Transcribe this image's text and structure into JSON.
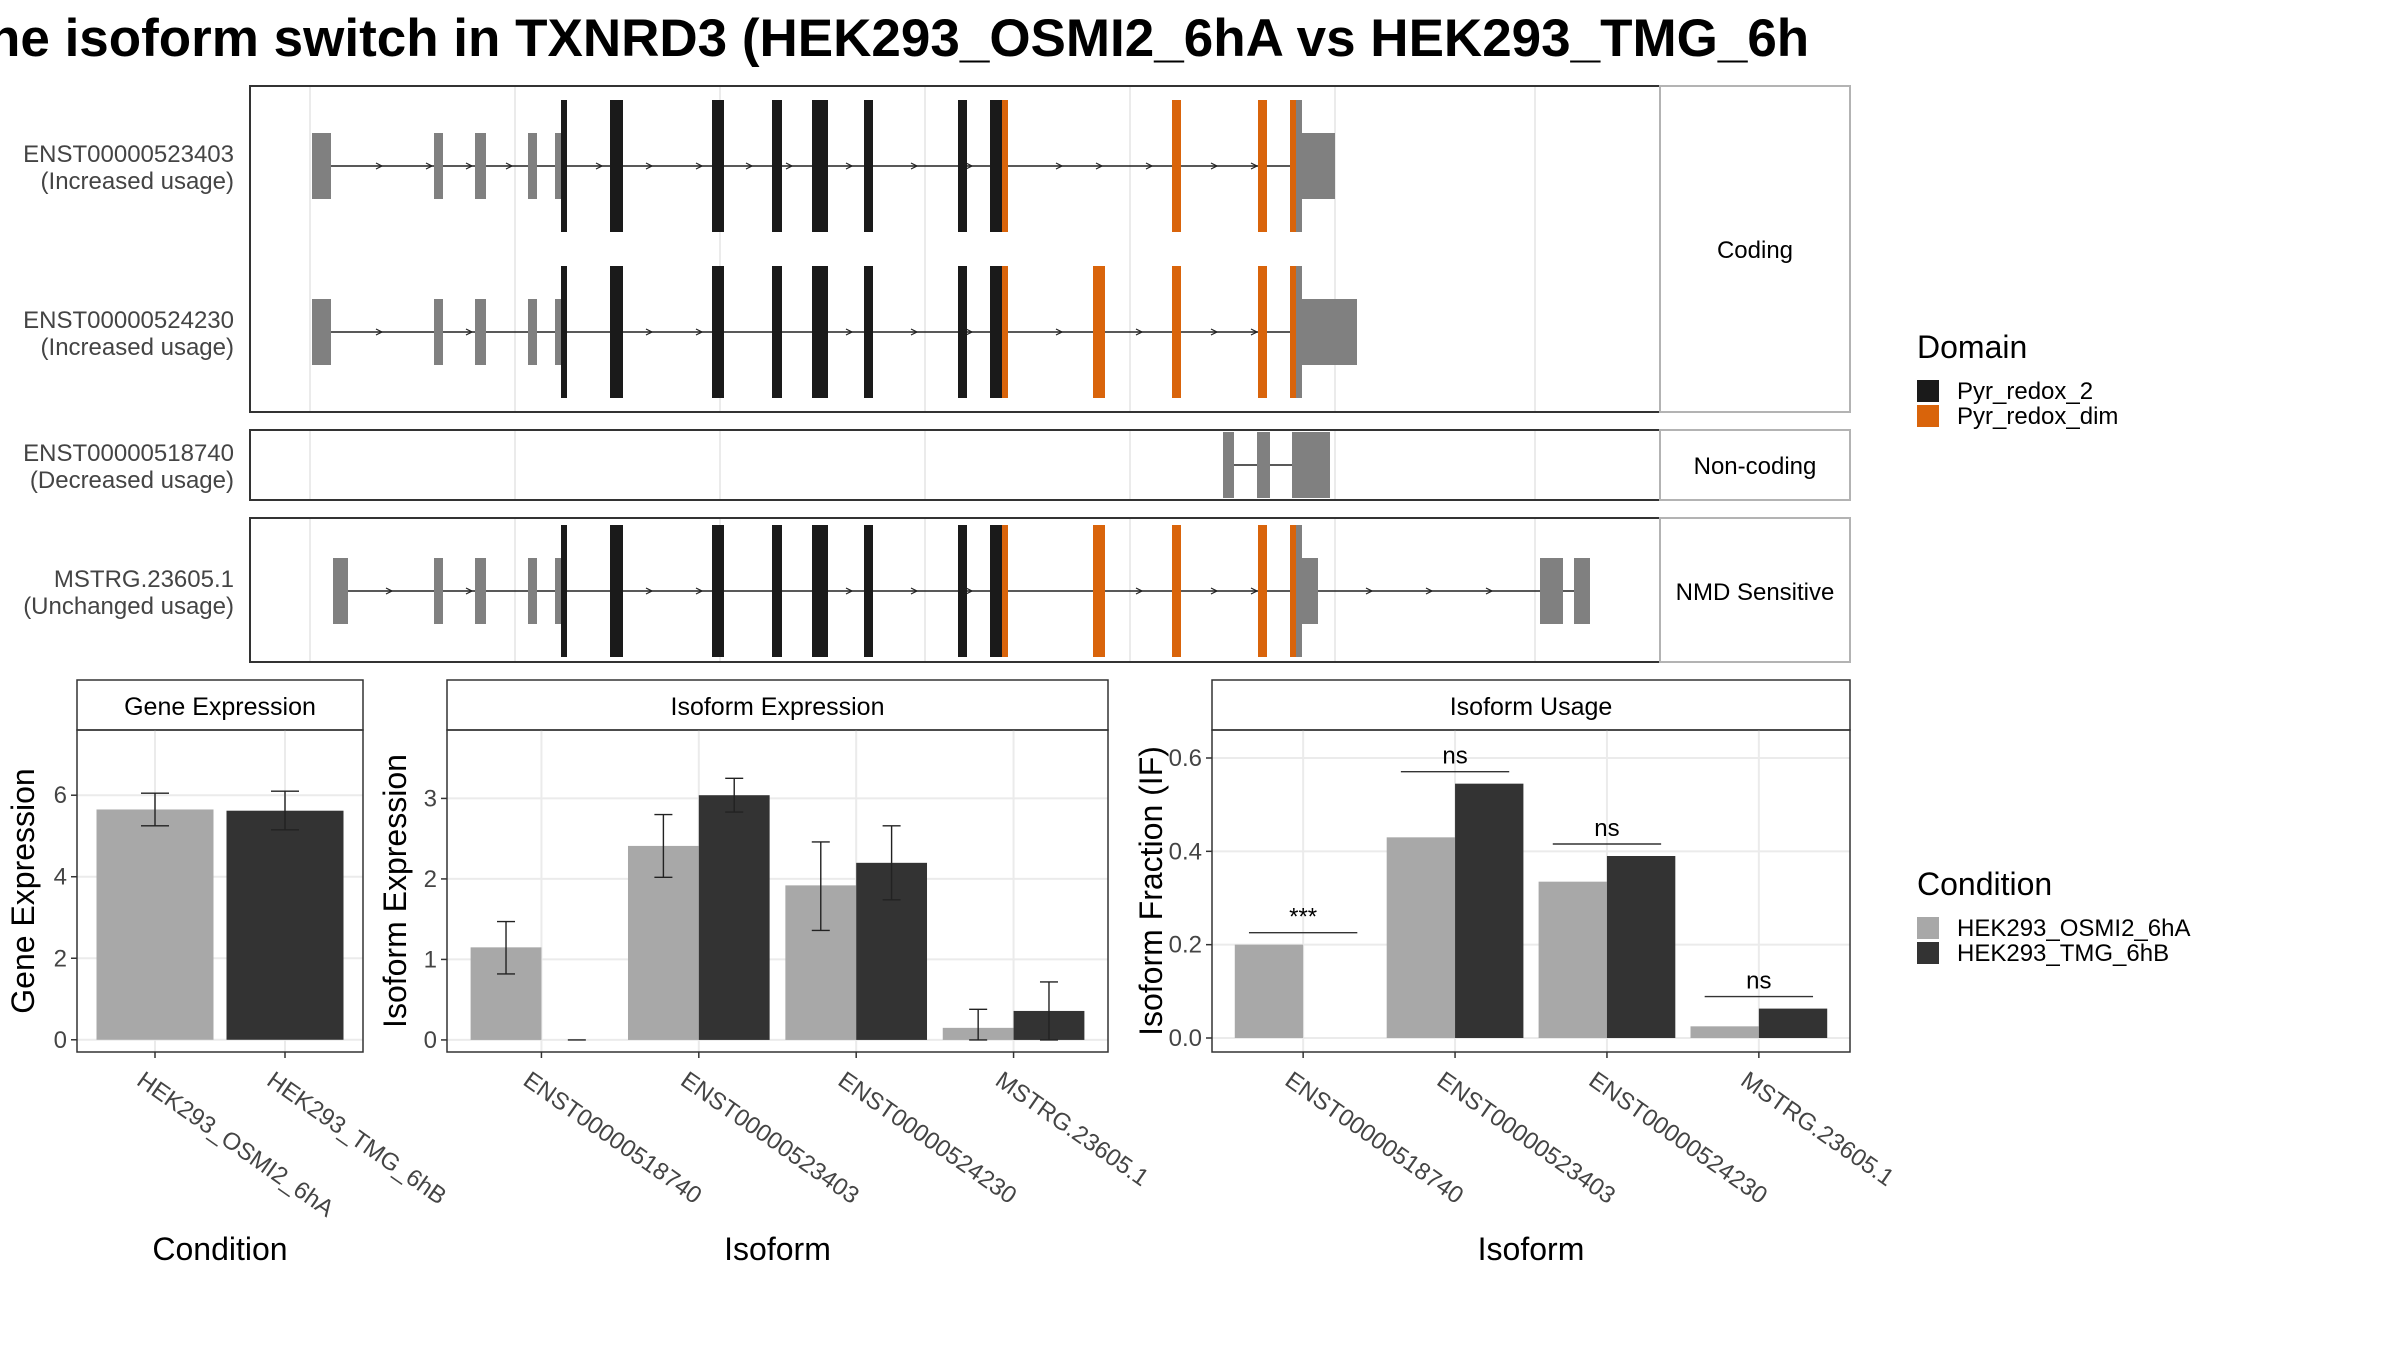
{
  "title": "ne isoform switch in TXNRD3 (HEK293_OSMI2_6hA vs HEK293_TMG_6h",
  "colors": {
    "orange": "#d9640b",
    "black": "#1a1a1a",
    "utr": "#808080",
    "light_bar": "#a8a8a8",
    "dark_bar": "#333333",
    "grid": "#ebebeb",
    "strip_border": "#b3b3b3"
  },
  "structure": {
    "groups": [
      {
        "label": "Coding"
      },
      {
        "label": "Non-coding"
      },
      {
        "label": "NMD Sensitive"
      }
    ],
    "tracks": [
      {
        "id": "ENST00000523403",
        "usage": "(Increased usage)",
        "group": 0
      },
      {
        "id": "ENST00000524230",
        "usage": "(Increased usage)",
        "group": 0
      },
      {
        "id": "ENST00000518740",
        "usage": "(Decreased usage)",
        "group": 1
      },
      {
        "id": "MSTRG.23605.1",
        "usage": "(Unchanged usage)",
        "group": 2
      }
    ]
  },
  "legends": {
    "domain": {
      "title": "Domain",
      "items": [
        {
          "label": "Pyr_redox_2",
          "color": "#1a1a1a"
        },
        {
          "label": "Pyr_redox_dim",
          "color": "#d9640b"
        }
      ]
    },
    "condition": {
      "title": "Condition",
      "items": [
        {
          "label": "HEK293_OSMI2_6hA",
          "color": "#a8a8a8"
        },
        {
          "label": "HEK293_TMG_6hB",
          "color": "#333333"
        }
      ]
    }
  },
  "chart_data": [
    {
      "type": "bar",
      "title": "Gene Expression",
      "xlabel": "Condition",
      "ylabel": "Gene Expression",
      "categories": [
        "HEK293_OSMI2_6hA",
        "HEK293_TMG_6hB"
      ],
      "values": [
        5.65,
        5.62
      ],
      "errors": [
        [
          5.25,
          6.05
        ],
        [
          5.15,
          6.1
        ]
      ],
      "ylim": [
        -0.3,
        7.6
      ],
      "yticks": [
        "0",
        "2",
        "4",
        "6"
      ]
    },
    {
      "type": "bar",
      "title": "Isoform Expression",
      "xlabel": "Isoform",
      "ylabel": "Isoform Expression",
      "categories": [
        "ENST00000518740",
        "ENST00000523403",
        "ENST00000524230",
        "MSTRG.23605.1"
      ],
      "series": [
        {
          "name": "HEK293_OSMI2_6hA",
          "values": [
            1.15,
            2.41,
            1.92,
            0.15
          ],
          "errors": [
            [
              0.82,
              1.47
            ],
            [
              2.02,
              2.8
            ],
            [
              1.36,
              2.46
            ],
            [
              0.0,
              0.38
            ]
          ]
        },
        {
          "name": "HEK293_TMG_6hB",
          "values": [
            0.0,
            3.04,
            2.2,
            0.36
          ],
          "errors": [
            [
              0.0,
              0.0
            ],
            [
              2.83,
              3.25
            ],
            [
              1.74,
              2.66
            ],
            [
              0.0,
              0.72
            ]
          ]
        }
      ],
      "ylim": [
        -0.15,
        3.85
      ],
      "yticks": [
        "0",
        "1",
        "2",
        "3"
      ]
    },
    {
      "type": "bar",
      "title": "Isoform Usage",
      "xlabel": "Isoform",
      "ylabel": "Isoform Fraction (IF)",
      "categories": [
        "ENST00000518740",
        "ENST00000523403",
        "ENST00000524230",
        "MSTRG.23605.1"
      ],
      "series": [
        {
          "name": "HEK293_OSMI2_6hA",
          "values": [
            0.2,
            0.43,
            0.335,
            0.025
          ]
        },
        {
          "name": "HEK293_TMG_6hB",
          "values": [
            0.0,
            0.545,
            0.39,
            0.063
          ]
        }
      ],
      "significance": [
        "***",
        "ns",
        "ns",
        "ns"
      ],
      "ylim": [
        -0.03,
        0.66
      ],
      "yticks": [
        "0.0",
        "0.2",
        "0.4",
        "0.6"
      ]
    }
  ]
}
